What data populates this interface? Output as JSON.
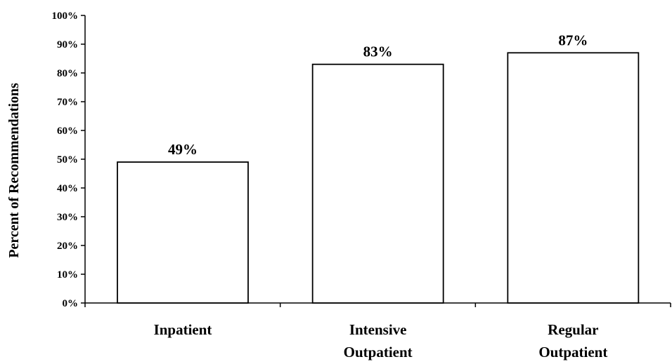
{
  "chart_data": {
    "type": "bar",
    "title": "",
    "xlabel": "",
    "ylabel": "Percent of Recommendations",
    "categories": [
      [
        "Inpatient"
      ],
      [
        "Intensive",
        "Outpatient"
      ],
      [
        "Regular",
        "Outpatient"
      ]
    ],
    "values": [
      49,
      83,
      87
    ],
    "data_labels": [
      "49%",
      "83%",
      "87%"
    ],
    "ylim": [
      0,
      100
    ],
    "yticks": [
      0,
      10,
      20,
      30,
      40,
      50,
      60,
      70,
      80,
      90,
      100
    ],
    "ytick_labels": [
      "0%",
      "10%",
      "20%",
      "30%",
      "40%",
      "50%",
      "60%",
      "70%",
      "80%",
      "90%",
      "100%"
    ],
    "grid": false,
    "legend": "none",
    "colors": {
      "bar_fill": "#ffffff",
      "bar_stroke": "#000000",
      "axis": "#000000"
    }
  }
}
